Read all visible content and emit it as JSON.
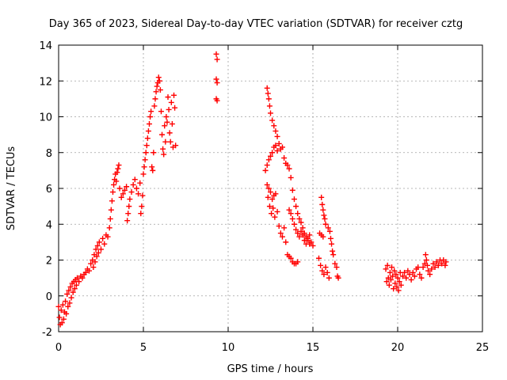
{
  "chart_data": {
    "type": "scatter",
    "title": "Day 365 of 2023, Sidereal Day-to-day VTEC variation (SDTVAR) for receiver cztg",
    "xlabel": "GPS time / hours",
    "ylabel": "SDTVAR / TECUs",
    "xlim": [
      0,
      25
    ],
    "ylim": [
      -2,
      14
    ],
    "xticks": [
      0,
      5,
      10,
      15,
      20,
      25
    ],
    "yticks": [
      -2,
      0,
      2,
      4,
      6,
      8,
      10,
      12,
      14
    ],
    "grid": true,
    "marker": "+",
    "color": "#ff0000",
    "series": [
      {
        "name": "SDTVAR",
        "points": [
          [
            0.0,
            -0.6
          ],
          [
            0.05,
            -1.2
          ],
          [
            0.1,
            -1.6
          ],
          [
            0.15,
            -0.8
          ],
          [
            0.2,
            -1.5
          ],
          [
            0.25,
            -0.5
          ],
          [
            0.3,
            -1.3
          ],
          [
            0.35,
            -0.9
          ],
          [
            0.4,
            -0.3
          ],
          [
            0.45,
            -1.0
          ],
          [
            0.5,
            0.1
          ],
          [
            0.55,
            -0.6
          ],
          [
            0.6,
            0.3
          ],
          [
            0.65,
            -0.4
          ],
          [
            0.7,
            0.5
          ],
          [
            0.75,
            -0.1
          ],
          [
            0.8,
            0.7
          ],
          [
            0.85,
            0.2
          ],
          [
            0.9,
            0.8
          ],
          [
            0.95,
            0.4
          ],
          [
            1.0,
            0.9
          ],
          [
            1.05,
            0.6
          ],
          [
            1.1,
            1.0
          ],
          [
            1.2,
            0.8
          ],
          [
            1.3,
            1.1
          ],
          [
            1.4,
            1.0
          ],
          [
            1.5,
            1.2
          ],
          [
            1.6,
            1.3
          ],
          [
            1.7,
            1.5
          ],
          [
            1.8,
            1.4
          ],
          [
            1.9,
            1.8
          ],
          [
            2.0,
            2.0
          ],
          [
            2.05,
            1.6
          ],
          [
            2.1,
            2.3
          ],
          [
            2.15,
            1.9
          ],
          [
            2.2,
            2.6
          ],
          [
            2.25,
            2.2
          ],
          [
            2.3,
            2.8
          ],
          [
            2.35,
            2.4
          ],
          [
            2.4,
            3.0
          ],
          [
            2.5,
            2.6
          ],
          [
            2.6,
            3.2
          ],
          [
            2.7,
            2.9
          ],
          [
            2.8,
            3.4
          ],
          [
            2.9,
            3.3
          ],
          [
            3.0,
            3.8
          ],
          [
            3.05,
            4.3
          ],
          [
            3.1,
            4.8
          ],
          [
            3.15,
            5.3
          ],
          [
            3.2,
            5.8
          ],
          [
            3.25,
            6.2
          ],
          [
            3.3,
            6.5
          ],
          [
            3.35,
            6.8
          ],
          [
            3.4,
            6.4
          ],
          [
            3.45,
            6.9
          ],
          [
            3.5,
            7.1
          ],
          [
            3.55,
            7.3
          ],
          [
            3.6,
            6.0
          ],
          [
            3.7,
            5.5
          ],
          [
            3.8,
            5.7
          ],
          [
            3.9,
            5.9
          ],
          [
            4.0,
            6.1
          ],
          [
            4.05,
            4.2
          ],
          [
            4.1,
            4.6
          ],
          [
            4.15,
            5.0
          ],
          [
            4.2,
            5.4
          ],
          [
            4.3,
            5.8
          ],
          [
            4.4,
            6.2
          ],
          [
            4.5,
            6.5
          ],
          [
            4.6,
            6.0
          ],
          [
            4.7,
            5.7
          ],
          [
            4.8,
            6.3
          ],
          [
            4.85,
            4.6
          ],
          [
            4.9,
            5.0
          ],
          [
            4.95,
            5.6
          ],
          [
            5.0,
            6.8
          ],
          [
            5.05,
            7.2
          ],
          [
            5.1,
            7.6
          ],
          [
            5.15,
            8.0
          ],
          [
            5.2,
            8.4
          ],
          [
            5.25,
            8.8
          ],
          [
            5.3,
            9.2
          ],
          [
            5.35,
            9.6
          ],
          [
            5.4,
            10.0
          ],
          [
            5.45,
            10.3
          ],
          [
            5.5,
            7.2
          ],
          [
            5.55,
            7.0
          ],
          [
            5.6,
            8.0
          ],
          [
            5.65,
            10.6
          ],
          [
            5.7,
            11.0
          ],
          [
            5.75,
            11.4
          ],
          [
            5.8,
            11.7
          ],
          [
            5.85,
            11.9
          ],
          [
            5.9,
            12.2
          ],
          [
            5.95,
            12.0
          ],
          [
            6.0,
            11.5
          ],
          [
            6.05,
            10.3
          ],
          [
            6.1,
            9.0
          ],
          [
            6.15,
            8.2
          ],
          [
            6.2,
            7.9
          ],
          [
            6.25,
            9.5
          ],
          [
            6.3,
            8.6
          ],
          [
            6.35,
            10.0
          ],
          [
            6.4,
            9.7
          ],
          [
            6.45,
            11.1
          ],
          [
            6.5,
            10.4
          ],
          [
            6.55,
            9.1
          ],
          [
            6.6,
            8.6
          ],
          [
            6.65,
            10.8
          ],
          [
            6.7,
            9.6
          ],
          [
            6.75,
            8.3
          ],
          [
            6.8,
            11.2
          ],
          [
            6.85,
            10.5
          ],
          [
            6.9,
            8.4
          ],
          [
            9.3,
            13.5
          ],
          [
            9.35,
            13.2
          ],
          [
            9.3,
            12.1
          ],
          [
            9.35,
            11.9
          ],
          [
            9.3,
            11.0
          ],
          [
            9.35,
            10.9
          ],
          [
            12.3,
            11.6
          ],
          [
            12.35,
            11.3
          ],
          [
            12.4,
            11.0
          ],
          [
            12.45,
            10.6
          ],
          [
            12.5,
            10.2
          ],
          [
            12.6,
            9.8
          ],
          [
            12.7,
            9.5
          ],
          [
            12.8,
            9.2
          ],
          [
            12.9,
            8.9
          ],
          [
            13.0,
            8.5
          ],
          [
            13.1,
            8.2
          ],
          [
            13.2,
            8.3
          ],
          [
            13.3,
            7.7
          ],
          [
            13.4,
            7.4
          ],
          [
            13.5,
            7.3
          ],
          [
            13.6,
            7.1
          ],
          [
            13.7,
            6.6
          ],
          [
            13.8,
            5.9
          ],
          [
            13.9,
            5.4
          ],
          [
            14.0,
            5.0
          ],
          [
            14.1,
            4.6
          ],
          [
            14.2,
            4.3
          ],
          [
            14.3,
            4.1
          ],
          [
            14.4,
            3.8
          ],
          [
            14.5,
            3.5
          ],
          [
            14.6,
            3.3
          ],
          [
            14.7,
            3.2
          ],
          [
            14.8,
            3.4
          ],
          [
            14.9,
            3.0
          ],
          [
            15.0,
            2.8
          ],
          [
            12.2,
            7.0
          ],
          [
            12.3,
            7.3
          ],
          [
            12.4,
            7.6
          ],
          [
            12.5,
            7.8
          ],
          [
            12.6,
            8.0
          ],
          [
            12.7,
            8.3
          ],
          [
            12.8,
            8.4
          ],
          [
            12.9,
            8.1
          ],
          [
            12.3,
            6.2
          ],
          [
            12.35,
            5.5
          ],
          [
            12.4,
            6.0
          ],
          [
            12.45,
            5.0
          ],
          [
            12.5,
            5.8
          ],
          [
            12.55,
            4.6
          ],
          [
            12.6,
            5.4
          ],
          [
            12.65,
            4.9
          ],
          [
            12.7,
            5.6
          ],
          [
            12.75,
            4.4
          ],
          [
            12.8,
            5.7
          ],
          [
            12.9,
            4.7
          ],
          [
            13.0,
            3.9
          ],
          [
            13.1,
            3.5
          ],
          [
            13.2,
            3.3
          ],
          [
            13.3,
            3.8
          ],
          [
            13.4,
            3.0
          ],
          [
            13.5,
            2.3
          ],
          [
            13.6,
            2.2
          ],
          [
            13.7,
            2.1
          ],
          [
            13.8,
            1.9
          ],
          [
            13.9,
            1.8
          ],
          [
            14.0,
            1.8
          ],
          [
            14.1,
            1.9
          ],
          [
            13.6,
            4.8
          ],
          [
            13.7,
            4.6
          ],
          [
            13.8,
            4.3
          ],
          [
            13.9,
            4.0
          ],
          [
            14.0,
            3.7
          ],
          [
            14.1,
            3.5
          ],
          [
            14.2,
            3.3
          ],
          [
            14.3,
            3.6
          ],
          [
            14.4,
            3.4
          ],
          [
            14.5,
            3.1
          ],
          [
            14.6,
            2.9
          ],
          [
            14.7,
            3.1
          ],
          [
            14.8,
            2.9
          ],
          [
            15.4,
            3.5
          ],
          [
            15.5,
            3.4
          ],
          [
            15.6,
            3.3
          ],
          [
            15.35,
            2.1
          ],
          [
            15.45,
            1.7
          ],
          [
            15.55,
            1.4
          ],
          [
            15.65,
            1.2
          ],
          [
            15.75,
            1.6
          ],
          [
            15.85,
            1.3
          ],
          [
            15.95,
            1.0
          ],
          [
            15.5,
            5.5
          ],
          [
            15.55,
            5.1
          ],
          [
            15.6,
            4.8
          ],
          [
            15.65,
            4.5
          ],
          [
            15.7,
            4.3
          ],
          [
            15.75,
            4.0
          ],
          [
            15.9,
            3.8
          ],
          [
            16.0,
            3.6
          ],
          [
            16.05,
            3.2
          ],
          [
            16.1,
            2.9
          ],
          [
            16.15,
            2.5
          ],
          [
            16.2,
            2.3
          ],
          [
            16.3,
            1.8
          ],
          [
            16.4,
            1.6
          ],
          [
            16.45,
            1.1
          ],
          [
            16.5,
            1.0
          ],
          [
            19.3,
            1.5
          ],
          [
            19.35,
            0.8
          ],
          [
            19.4,
            1.7
          ],
          [
            19.45,
            1.0
          ],
          [
            19.5,
            0.6
          ],
          [
            19.55,
            1.3
          ],
          [
            19.6,
            0.9
          ],
          [
            19.65,
            1.6
          ],
          [
            19.7,
            1.1
          ],
          [
            19.75,
            0.4
          ],
          [
            19.8,
            1.4
          ],
          [
            19.85,
            0.7
          ],
          [
            19.9,
            1.2
          ],
          [
            19.95,
            0.5
          ],
          [
            20.0,
            1.0
          ],
          [
            20.05,
            0.3
          ],
          [
            20.1,
            0.8
          ],
          [
            20.15,
            1.3
          ],
          [
            20.2,
            0.6
          ],
          [
            20.3,
            1.1
          ],
          [
            20.4,
            1.3
          ],
          [
            20.5,
            1.0
          ],
          [
            20.6,
            1.4
          ],
          [
            20.7,
            1.2
          ],
          [
            20.8,
            0.9
          ],
          [
            20.9,
            1.3
          ],
          [
            21.0,
            1.1
          ],
          [
            21.1,
            1.5
          ],
          [
            21.2,
            1.6
          ],
          [
            21.3,
            1.2
          ],
          [
            21.4,
            1.0
          ],
          [
            21.5,
            1.6
          ],
          [
            21.6,
            1.8
          ],
          [
            21.65,
            2.3
          ],
          [
            21.7,
            2.0
          ],
          [
            21.75,
            1.7
          ],
          [
            21.8,
            1.4
          ],
          [
            21.9,
            1.2
          ],
          [
            22.0,
            1.5
          ],
          [
            22.1,
            1.8
          ],
          [
            22.2,
            1.6
          ],
          [
            22.3,
            1.9
          ],
          [
            22.4,
            1.7
          ],
          [
            22.5,
            2.0
          ],
          [
            22.6,
            1.8
          ],
          [
            22.7,
            2.0
          ],
          [
            22.8,
            1.7
          ],
          [
            22.85,
            1.9
          ]
        ]
      }
    ]
  }
}
